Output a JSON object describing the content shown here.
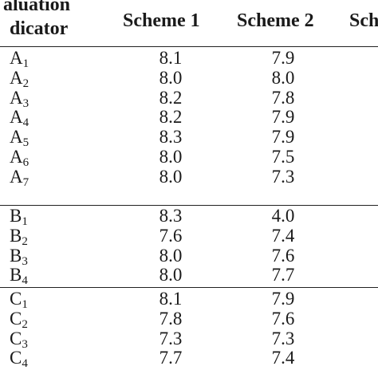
{
  "header": {
    "indicator_line1": "aluation",
    "indicator_line2": "dicator",
    "col1": "Scheme 1",
    "col2": "Scheme 2",
    "col3": "Sch"
  },
  "groups": [
    {
      "rows": [
        {
          "letter": "A",
          "sub": "1",
          "s1": "8.1",
          "s2": "7.9"
        },
        {
          "letter": "A",
          "sub": "2",
          "s1": "8.0",
          "s2": "8.0"
        },
        {
          "letter": "A",
          "sub": "3",
          "s1": "8.2",
          "s2": "7.8"
        },
        {
          "letter": "A",
          "sub": "4",
          "s1": "8.2",
          "s2": "7.9"
        },
        {
          "letter": "A",
          "sub": "5",
          "s1": "8.3",
          "s2": "7.9"
        },
        {
          "letter": "A",
          "sub": "6",
          "s1": "8.0",
          "s2": "7.5"
        },
        {
          "letter": "A",
          "sub": "7",
          "s1": "8.0",
          "s2": "7.3"
        }
      ]
    },
    {
      "rows": [
        {
          "letter": "B",
          "sub": "1",
          "s1": "8.3",
          "s2": "4.0"
        },
        {
          "letter": "B",
          "sub": "2",
          "s1": "7.6",
          "s2": "7.4"
        },
        {
          "letter": "B",
          "sub": "3",
          "s1": "8.0",
          "s2": "7.6"
        },
        {
          "letter": "B",
          "sub": "4",
          "s1": "8.0",
          "s2": "7.7"
        }
      ]
    },
    {
      "rows": [
        {
          "letter": "C",
          "sub": "1",
          "s1": "8.1",
          "s2": "7.9"
        },
        {
          "letter": "C",
          "sub": "2",
          "s1": "7.8",
          "s2": "7.6"
        },
        {
          "letter": "C",
          "sub": "3",
          "s1": "7.3",
          "s2": "7.3"
        },
        {
          "letter": "C",
          "sub": "4",
          "s1": "7.7",
          "s2": "7.4"
        }
      ]
    }
  ]
}
